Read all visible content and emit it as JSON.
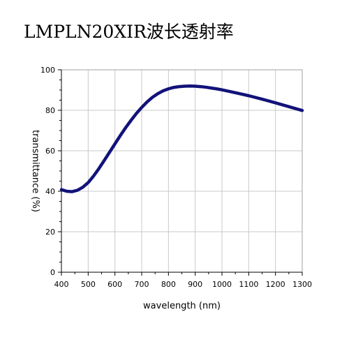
{
  "title": "LMPLN20XIR波长透射率",
  "chart_data": {
    "type": "line",
    "title": "LMPLN20XIR波长透射率",
    "xlabel": "wavelength (nm)",
    "ylabel": "transmittance (%)",
    "xlim": [
      400,
      1300
    ],
    "ylim": [
      0,
      100
    ],
    "xticks": [
      400,
      500,
      600,
      700,
      800,
      900,
      1000,
      1100,
      1200,
      1300
    ],
    "yticks": [
      0,
      20,
      40,
      60,
      80,
      100
    ],
    "grid": true,
    "line_color": "#12127a",
    "series": [
      {
        "x": [
          400,
          420,
          440,
          460,
          480,
          500,
          520,
          540,
          560,
          580,
          600,
          620,
          640,
          660,
          680,
          700,
          720,
          740,
          760,
          780,
          800,
          820,
          840,
          860,
          880,
          900,
          920,
          940,
          960,
          980,
          1000,
          1050,
          1100,
          1150,
          1200,
          1250,
          1300
        ],
        "y": [
          40.8,
          40.0,
          39.8,
          40.5,
          42.0,
          44.3,
          47.5,
          51.2,
          55.2,
          59.3,
          63.4,
          67.5,
          71.4,
          75.0,
          78.4,
          81.4,
          84.1,
          86.4,
          88.2,
          89.6,
          90.6,
          91.3,
          91.7,
          91.9,
          92.0,
          91.9,
          91.7,
          91.4,
          91.0,
          90.6,
          90.1,
          88.7,
          87.2,
          85.5,
          83.7,
          81.8,
          79.9
        ]
      }
    ]
  }
}
